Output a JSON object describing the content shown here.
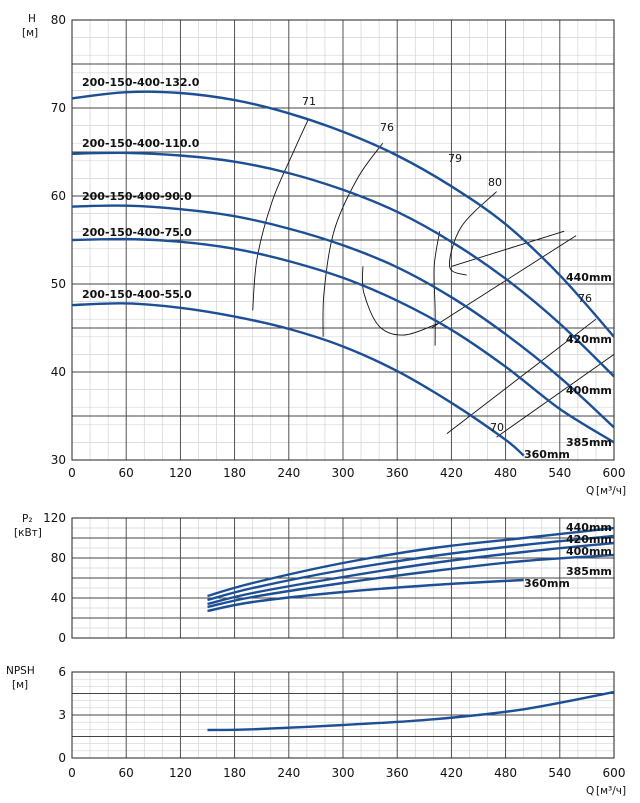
{
  "chart_data": [
    {
      "type": "line",
      "title": "",
      "ylabel": "H",
      "yunit": "[м]",
      "xlabel": "Q",
      "xunit": "[м³/ч]",
      "xlim": [
        0,
        600
      ],
      "ylim": [
        30,
        80
      ],
      "xticks": [
        0,
        60,
        120,
        180,
        240,
        300,
        360,
        420,
        480,
        540,
        600
      ],
      "yticks": [
        30,
        40,
        50,
        60,
        70,
        80
      ],
      "grid": true,
      "series": [
        {
          "name": "200-150-400-132.0",
          "diameter": "440mm",
          "x": [
            0,
            60,
            120,
            180,
            240,
            300,
            360,
            420,
            480,
            540,
            600
          ],
          "y": [
            71.1,
            71.8,
            71.7,
            70.9,
            69.4,
            67.3,
            64.6,
            61.1,
            56.8,
            51.0,
            44.0
          ]
        },
        {
          "name": "200-150-400-110.0",
          "diameter": "420mm",
          "x": [
            0,
            60,
            120,
            180,
            240,
            300,
            360,
            420,
            480,
            540,
            600
          ],
          "y": [
            64.8,
            64.9,
            64.6,
            63.9,
            62.6,
            60.7,
            58.2,
            54.8,
            50.6,
            45.5,
            39.5
          ]
        },
        {
          "name": "200-150-400-90.0",
          "diameter": "400mm",
          "x": [
            0,
            60,
            120,
            180,
            240,
            300,
            360,
            420,
            480,
            540,
            600
          ],
          "y": [
            58.8,
            58.9,
            58.5,
            57.7,
            56.3,
            54.4,
            51.9,
            48.5,
            44.3,
            39.4,
            33.7
          ]
        },
        {
          "name": "200-150-400-75.0",
          "diameter": "385mm",
          "x": [
            0,
            60,
            120,
            180,
            240,
            300,
            360,
            420,
            480,
            540,
            600
          ],
          "y": [
            55.0,
            55.1,
            54.8,
            54.0,
            52.6,
            50.7,
            48.1,
            44.8,
            40.6,
            35.8,
            32.0
          ]
        },
        {
          "name": "200-150-400-55.0",
          "diameter": "360mm",
          "x": [
            0,
            60,
            120,
            180,
            240,
            300,
            360,
            420,
            480,
            500
          ],
          "y": [
            47.6,
            47.8,
            47.3,
            46.3,
            44.9,
            42.9,
            40.1,
            36.5,
            32.3,
            30.5
          ]
        }
      ],
      "efficiency_contours": [
        {
          "label": "71",
          "x": [
            200,
            205,
            222,
            246,
            262
          ],
          "y": [
            47.0,
            53.0,
            59.5,
            65.2,
            68.8
          ]
        },
        {
          "label": "76",
          "x": [
            278,
            279,
            290,
            316,
            344
          ],
          "y": [
            44.0,
            49.0,
            56.0,
            62.0,
            66.0
          ]
        },
        {
          "label": "79",
          "x": [
            405,
            368,
            340,
            323,
            322
          ],
          "y": [
            45.5,
            44.2,
            45.2,
            49.0,
            52.0
          ]
        },
        {
          "label": "80",
          "x": [
            437,
            418,
            431,
            470
          ],
          "y": [
            51.0,
            52.0,
            56.5,
            60.5
          ]
        },
        {
          "label": "79",
          "x": [
            407,
            401,
            402,
            402
          ],
          "y": [
            56.0,
            52.0,
            47.0,
            43.0
          ]
        }
      ],
      "efficiency_labels": [
        "71",
        "76",
        "79",
        "80",
        "76",
        "70"
      ]
    },
    {
      "type": "line",
      "ylabel": "P₂",
      "yunit": "[кВт]",
      "xlabel": "",
      "xlim": [
        0,
        600
      ],
      "ylim": [
        0,
        120
      ],
      "xticks": [
        0,
        60,
        120,
        180,
        240,
        300,
        360,
        420,
        480,
        540,
        600
      ],
      "yticks": [
        0,
        40,
        80,
        120
      ],
      "series": [
        {
          "name": "440mm",
          "x": [
            150,
            200,
            300,
            400,
            500,
            600
          ],
          "y": [
            42,
            55,
            75,
            90,
            100,
            110
          ]
        },
        {
          "name": "420mm",
          "x": [
            150,
            200,
            300,
            400,
            500,
            600
          ],
          "y": [
            38,
            50,
            68,
            82,
            93,
            102
          ]
        },
        {
          "name": "400mm",
          "x": [
            150,
            200,
            300,
            400,
            500,
            600
          ],
          "y": [
            34,
            45,
            61,
            75,
            86,
            95
          ]
        },
        {
          "name": "385mm",
          "x": [
            150,
            200,
            300,
            400,
            500,
            600
          ],
          "y": [
            31,
            41,
            55,
            67,
            77,
            83
          ]
        },
        {
          "name": "360mm",
          "x": [
            150,
            200,
            300,
            400,
            500
          ],
          "y": [
            27,
            36,
            46,
            53,
            58
          ]
        }
      ]
    },
    {
      "type": "line",
      "ylabel": "NPSH",
      "yunit": "[м]",
      "xlabel": "Q",
      "xunit": "[м³/ч]",
      "xlim": [
        0,
        600
      ],
      "ylim": [
        0,
        6
      ],
      "xticks": [
        0,
        60,
        120,
        180,
        240,
        300,
        360,
        420,
        480,
        540,
        600
      ],
      "yticks": [
        0,
        3,
        6
      ],
      "series": [
        {
          "name": "NPSH",
          "x": [
            150,
            200,
            300,
            400,
            500,
            600
          ],
          "y": [
            1.95,
            2.0,
            2.3,
            2.7,
            3.4,
            4.6
          ]
        }
      ]
    }
  ]
}
